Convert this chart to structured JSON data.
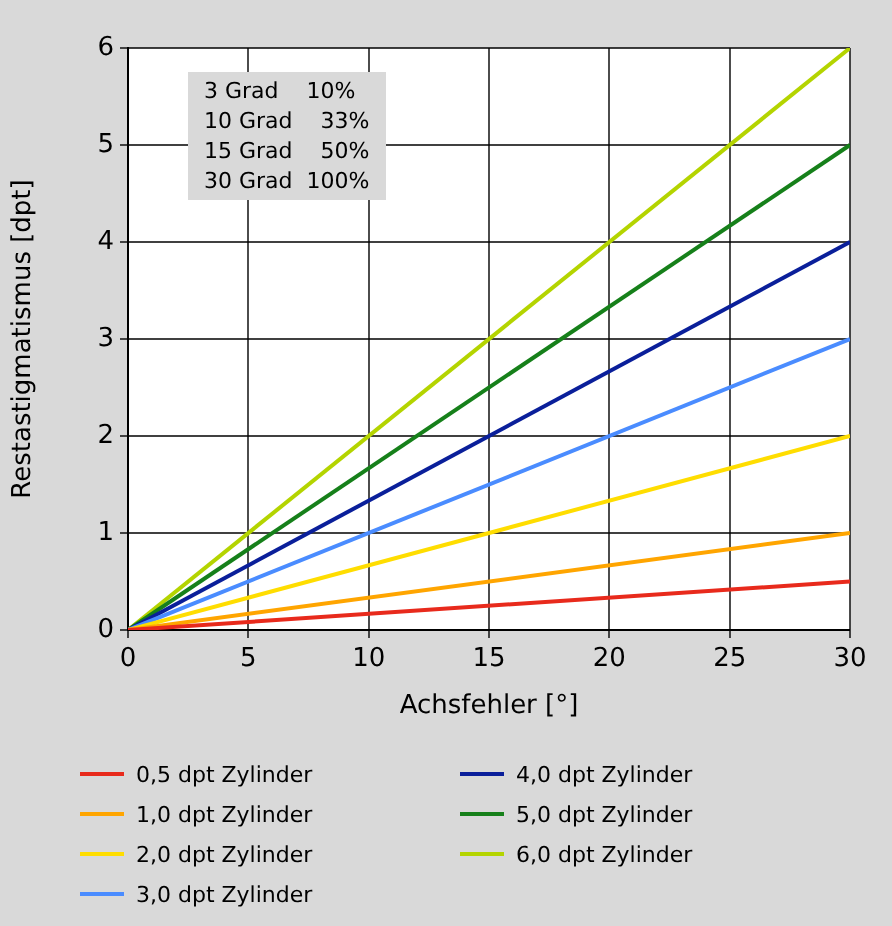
{
  "chart_data": {
    "type": "line",
    "xlabel": "Achsfehler [°]",
    "ylabel": "Restastigmatismus [dpt]",
    "x": [
      0,
      30
    ],
    "xlim": [
      0,
      30
    ],
    "xticks": [
      0,
      5,
      10,
      15,
      20,
      25,
      30
    ],
    "ylim": [
      0,
      6
    ],
    "yticks": [
      0,
      1,
      2,
      3,
      4,
      5,
      6
    ],
    "grid": true,
    "legend": "bottom",
    "marker": "none",
    "line_style": "solid",
    "annotations": [
      "3 Grad    10%",
      "10 Grad    33%",
      "15 Grad    50%",
      "30 Grad  100%"
    ],
    "series": [
      {
        "name": "0,5 dpt Zylinder",
        "color": "#e82a1c",
        "values": [
          0,
          0.5
        ]
      },
      {
        "name": "1,0 dpt Zylinder",
        "color": "#ffa500",
        "values": [
          0,
          1
        ]
      },
      {
        "name": "2,0 dpt Zylinder",
        "color": "#ffdd00",
        "values": [
          0,
          2
        ]
      },
      {
        "name": "3,0 dpt Zylinder",
        "color": "#4a8cff",
        "values": [
          0,
          3
        ]
      },
      {
        "name": "4,0 dpt Zylinder",
        "color": "#0a1f9a",
        "values": [
          0,
          4
        ]
      },
      {
        "name": "5,0 dpt Zylinder",
        "color": "#16801a",
        "values": [
          0,
          5
        ]
      },
      {
        "name": "6,0 dpt Zylinder",
        "color": "#b4d400",
        "values": [
          0,
          6
        ]
      }
    ]
  }
}
